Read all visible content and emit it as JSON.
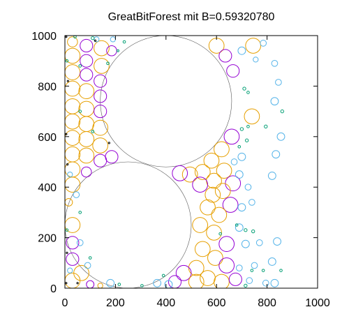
{
  "chart_data": {
    "type": "scatter",
    "title": "GreatBitForest mit B=0.59320780",
    "xlabel": "",
    "ylabel": "",
    "xlim": [
      0,
      1000
    ],
    "ylim": [
      0,
      1000
    ],
    "x_ticks": [
      0,
      200,
      400,
      600,
      800,
      1000
    ],
    "y_ticks": [
      0,
      200,
      400,
      600,
      800,
      1000
    ],
    "grid": false,
    "legend": "none",
    "colors": {
      "large": "#555555",
      "purple": "#9400d3",
      "orange": "#e69f00",
      "blue": "#56b4e9",
      "green": "#009e73",
      "black": "#000000"
    },
    "circles": [
      {
        "x": 400,
        "y": 740,
        "r": 260,
        "color": "large"
      },
      {
        "x": 250,
        "y": 250,
        "r": 250,
        "color": "large"
      },
      {
        "x": 30,
        "y": 975,
        "r": 20,
        "color": "orange"
      },
      {
        "x": 85,
        "y": 960,
        "r": 25,
        "color": "purple"
      },
      {
        "x": 145,
        "y": 950,
        "r": 30,
        "color": "orange"
      },
      {
        "x": 185,
        "y": 940,
        "r": 20,
        "color": "purple"
      },
      {
        "x": 30,
        "y": 920,
        "r": 30,
        "color": "orange"
      },
      {
        "x": 85,
        "y": 900,
        "r": 25,
        "color": "purple"
      },
      {
        "x": 145,
        "y": 880,
        "r": 30,
        "color": "orange"
      },
      {
        "x": 30,
        "y": 855,
        "r": 30,
        "color": "orange"
      },
      {
        "x": 85,
        "y": 845,
        "r": 25,
        "color": "purple"
      },
      {
        "x": 140,
        "y": 820,
        "r": 25,
        "color": "purple"
      },
      {
        "x": 30,
        "y": 790,
        "r": 30,
        "color": "orange"
      },
      {
        "x": 85,
        "y": 780,
        "r": 30,
        "color": "orange"
      },
      {
        "x": 140,
        "y": 760,
        "r": 25,
        "color": "purple"
      },
      {
        "x": 30,
        "y": 720,
        "r": 30,
        "color": "orange"
      },
      {
        "x": 85,
        "y": 710,
        "r": 30,
        "color": "orange"
      },
      {
        "x": 140,
        "y": 700,
        "r": 25,
        "color": "purple"
      },
      {
        "x": 30,
        "y": 660,
        "r": 30,
        "color": "orange"
      },
      {
        "x": 85,
        "y": 650,
        "r": 30,
        "color": "orange"
      },
      {
        "x": 140,
        "y": 635,
        "r": 30,
        "color": "orange"
      },
      {
        "x": 30,
        "y": 595,
        "r": 30,
        "color": "orange"
      },
      {
        "x": 85,
        "y": 590,
        "r": 30,
        "color": "orange"
      },
      {
        "x": 140,
        "y": 565,
        "r": 30,
        "color": "orange"
      },
      {
        "x": 30,
        "y": 530,
        "r": 30,
        "color": "orange"
      },
      {
        "x": 85,
        "y": 525,
        "r": 30,
        "color": "orange"
      },
      {
        "x": 140,
        "y": 505,
        "r": 25,
        "color": "purple"
      },
      {
        "x": 185,
        "y": 520,
        "r": 25,
        "color": "purple"
      },
      {
        "x": 30,
        "y": 470,
        "r": 30,
        "color": "orange"
      },
      {
        "x": 85,
        "y": 460,
        "r": 20,
        "color": "purple"
      },
      {
        "x": 30,
        "y": 410,
        "r": 30,
        "color": "orange"
      },
      {
        "x": 600,
        "y": 960,
        "r": 30,
        "color": "orange"
      },
      {
        "x": 635,
        "y": 920,
        "r": 25,
        "color": "purple"
      },
      {
        "x": 665,
        "y": 860,
        "r": 25,
        "color": "purple"
      },
      {
        "x": 745,
        "y": 960,
        "r": 30,
        "color": "orange"
      },
      {
        "x": 740,
        "y": 680,
        "r": 30,
        "color": "orange"
      },
      {
        "x": 660,
        "y": 600,
        "r": 30,
        "color": "purple"
      },
      {
        "x": 620,
        "y": 550,
        "r": 30,
        "color": "orange"
      },
      {
        "x": 580,
        "y": 505,
        "r": 30,
        "color": "orange"
      },
      {
        "x": 630,
        "y": 465,
        "r": 30,
        "color": "orange"
      },
      {
        "x": 665,
        "y": 415,
        "r": 30,
        "color": "purple"
      },
      {
        "x": 545,
        "y": 460,
        "r": 30,
        "color": "orange"
      },
      {
        "x": 495,
        "y": 450,
        "r": 30,
        "color": "orange"
      },
      {
        "x": 455,
        "y": 455,
        "r": 30,
        "color": "purple"
      },
      {
        "x": 590,
        "y": 425,
        "r": 30,
        "color": "orange"
      },
      {
        "x": 625,
        "y": 385,
        "r": 30,
        "color": "orange"
      },
      {
        "x": 535,
        "y": 410,
        "r": 30,
        "color": "purple"
      },
      {
        "x": 585,
        "y": 370,
        "r": 30,
        "color": "orange"
      },
      {
        "x": 655,
        "y": 330,
        "r": 30,
        "color": "purple"
      },
      {
        "x": 565,
        "y": 320,
        "r": 30,
        "color": "orange"
      },
      {
        "x": 610,
        "y": 290,
        "r": 30,
        "color": "orange"
      },
      {
        "x": 535,
        "y": 250,
        "r": 30,
        "color": "orange"
      },
      {
        "x": 590,
        "y": 220,
        "r": 30,
        "color": "orange"
      },
      {
        "x": 640,
        "y": 175,
        "r": 30,
        "color": "purple"
      },
      {
        "x": 545,
        "y": 155,
        "r": 30,
        "color": "orange"
      },
      {
        "x": 595,
        "y": 120,
        "r": 30,
        "color": "orange"
      },
      {
        "x": 640,
        "y": 90,
        "r": 30,
        "color": "purple"
      },
      {
        "x": 520,
        "y": 80,
        "r": 30,
        "color": "orange"
      },
      {
        "x": 470,
        "y": 60,
        "r": 30,
        "color": "purple"
      },
      {
        "x": 565,
        "y": 40,
        "r": 30,
        "color": "orange"
      },
      {
        "x": 620,
        "y": 25,
        "r": 30,
        "color": "orange"
      },
      {
        "x": 435,
        "y": 25,
        "r": 25,
        "color": "purple"
      },
      {
        "x": 520,
        "y": 25,
        "r": 30,
        "color": "orange"
      },
      {
        "x": 675,
        "y": 35,
        "r": 25,
        "color": "purple"
      },
      {
        "x": 30,
        "y": 250,
        "r": 30,
        "color": "orange"
      },
      {
        "x": 30,
        "y": 180,
        "r": 25,
        "color": "purple"
      },
      {
        "x": 30,
        "y": 115,
        "r": 25,
        "color": "purple"
      },
      {
        "x": 65,
        "y": 60,
        "r": 30,
        "color": "orange"
      },
      {
        "x": 30,
        "y": 30,
        "r": 30,
        "color": "orange"
      },
      {
        "x": 100,
        "y": 15,
        "r": 15,
        "color": "purple"
      },
      {
        "x": 140,
        "y": 10,
        "r": 10,
        "color": "orange"
      },
      {
        "x": 15,
        "y": 340,
        "r": 15,
        "color": "orange"
      },
      {
        "x": 700,
        "y": 940,
        "r": 15,
        "color": "blue"
      },
      {
        "x": 755,
        "y": 905,
        "r": 10,
        "color": "blue"
      },
      {
        "x": 785,
        "y": 970,
        "r": 12,
        "color": "blue"
      },
      {
        "x": 830,
        "y": 890,
        "r": 12,
        "color": "blue"
      },
      {
        "x": 830,
        "y": 740,
        "r": 15,
        "color": "blue"
      },
      {
        "x": 845,
        "y": 815,
        "r": 12,
        "color": "blue"
      },
      {
        "x": 855,
        "y": 600,
        "r": 15,
        "color": "blue"
      },
      {
        "x": 835,
        "y": 530,
        "r": 15,
        "color": "blue"
      },
      {
        "x": 820,
        "y": 445,
        "r": 15,
        "color": "blue"
      },
      {
        "x": 700,
        "y": 520,
        "r": 15,
        "color": "blue"
      },
      {
        "x": 690,
        "y": 450,
        "r": 15,
        "color": "blue"
      },
      {
        "x": 725,
        "y": 400,
        "r": 12,
        "color": "blue"
      },
      {
        "x": 740,
        "y": 340,
        "r": 12,
        "color": "blue"
      },
      {
        "x": 700,
        "y": 320,
        "r": 15,
        "color": "blue"
      },
      {
        "x": 690,
        "y": 240,
        "r": 15,
        "color": "blue"
      },
      {
        "x": 715,
        "y": 175,
        "r": 15,
        "color": "blue"
      },
      {
        "x": 770,
        "y": 180,
        "r": 12,
        "color": "blue"
      },
      {
        "x": 840,
        "y": 185,
        "r": 15,
        "color": "blue"
      },
      {
        "x": 750,
        "y": 90,
        "r": 12,
        "color": "blue"
      },
      {
        "x": 690,
        "y": 80,
        "r": 12,
        "color": "blue"
      },
      {
        "x": 820,
        "y": 105,
        "r": 15,
        "color": "blue"
      },
      {
        "x": 795,
        "y": 20,
        "r": 12,
        "color": "blue"
      },
      {
        "x": 730,
        "y": 30,
        "r": 12,
        "color": "blue"
      },
      {
        "x": 830,
        "y": 20,
        "r": 15,
        "color": "blue"
      },
      {
        "x": 670,
        "y": 500,
        "r": 12,
        "color": "blue"
      },
      {
        "x": 365,
        "y": 20,
        "r": 15,
        "color": "blue"
      },
      {
        "x": 410,
        "y": 15,
        "r": 15,
        "color": "blue"
      },
      {
        "x": 180,
        "y": 20,
        "r": 15,
        "color": "blue"
      },
      {
        "x": 90,
        "y": 90,
        "r": 12,
        "color": "blue"
      },
      {
        "x": 20,
        "y": 70,
        "r": 10,
        "color": "blue"
      },
      {
        "x": 60,
        "y": 180,
        "r": 12,
        "color": "blue"
      },
      {
        "x": 20,
        "y": 450,
        "r": 10,
        "color": "blue"
      },
      {
        "x": 45,
        "y": 370,
        "r": 12,
        "color": "blue"
      },
      {
        "x": 190,
        "y": 985,
        "r": 10,
        "color": "blue"
      },
      {
        "x": 125,
        "y": 985,
        "r": 10,
        "color": "blue"
      },
      {
        "x": 710,
        "y": 790,
        "r": 6,
        "color": "green"
      },
      {
        "x": 725,
        "y": 775,
        "r": 5,
        "color": "green"
      },
      {
        "x": 700,
        "y": 630,
        "r": 6,
        "color": "green"
      },
      {
        "x": 725,
        "y": 640,
        "r": 5,
        "color": "green"
      },
      {
        "x": 795,
        "y": 640,
        "r": 6,
        "color": "green"
      },
      {
        "x": 860,
        "y": 700,
        "r": 6,
        "color": "green"
      },
      {
        "x": 715,
        "y": 230,
        "r": 6,
        "color": "green"
      },
      {
        "x": 745,
        "y": 225,
        "r": 6,
        "color": "green"
      },
      {
        "x": 740,
        "y": 70,
        "r": 5,
        "color": "green"
      },
      {
        "x": 715,
        "y": 10,
        "r": 6,
        "color": "green"
      },
      {
        "x": 785,
        "y": 70,
        "r": 5,
        "color": "green"
      },
      {
        "x": 855,
        "y": 70,
        "r": 5,
        "color": "green"
      },
      {
        "x": 720,
        "y": 585,
        "r": 6,
        "color": "green"
      },
      {
        "x": 40,
        "y": 995,
        "r": 5,
        "color": "green"
      },
      {
        "x": 110,
        "y": 990,
        "r": 6,
        "color": "green"
      },
      {
        "x": 170,
        "y": 890,
        "r": 5,
        "color": "green"
      },
      {
        "x": 60,
        "y": 880,
        "r": 5,
        "color": "green"
      },
      {
        "x": 8,
        "y": 900,
        "r": 5,
        "color": "green"
      },
      {
        "x": 60,
        "y": 700,
        "r": 5,
        "color": "green"
      },
      {
        "x": 110,
        "y": 620,
        "r": 5,
        "color": "green"
      },
      {
        "x": 60,
        "y": 300,
        "r": 5,
        "color": "green"
      },
      {
        "x": 8,
        "y": 230,
        "r": 5,
        "color": "green"
      },
      {
        "x": 100,
        "y": 120,
        "r": 5,
        "color": "green"
      },
      {
        "x": 215,
        "y": 15,
        "r": 5,
        "color": "green"
      },
      {
        "x": 305,
        "y": 10,
        "r": 5,
        "color": "green"
      },
      {
        "x": 390,
        "y": 50,
        "r": 5,
        "color": "green"
      },
      {
        "x": 615,
        "y": 215,
        "r": 5,
        "color": "green"
      },
      {
        "x": 680,
        "y": 250,
        "r": 5,
        "color": "green"
      },
      {
        "x": 690,
        "y": 560,
        "r": 5,
        "color": "green"
      },
      {
        "x": 210,
        "y": 940,
        "r": 4,
        "color": "green"
      },
      {
        "x": 235,
        "y": 975,
        "r": 5,
        "color": "green"
      },
      {
        "x": 5,
        "y": 995,
        "r": 3,
        "color": "black"
      },
      {
        "x": 12,
        "y": 820,
        "r": 3,
        "color": "black"
      },
      {
        "x": 5,
        "y": 610,
        "r": 3,
        "color": "black"
      },
      {
        "x": 10,
        "y": 490,
        "r": 3,
        "color": "black"
      },
      {
        "x": 8,
        "y": 140,
        "r": 3,
        "color": "black"
      },
      {
        "x": 50,
        "y": 20,
        "r": 3,
        "color": "black"
      },
      {
        "x": 5,
        "y": 20,
        "r": 3,
        "color": "black"
      },
      {
        "x": 120,
        "y": 980,
        "r": 3,
        "color": "black"
      },
      {
        "x": 175,
        "y": 575,
        "r": 3,
        "color": "black"
      }
    ]
  }
}
